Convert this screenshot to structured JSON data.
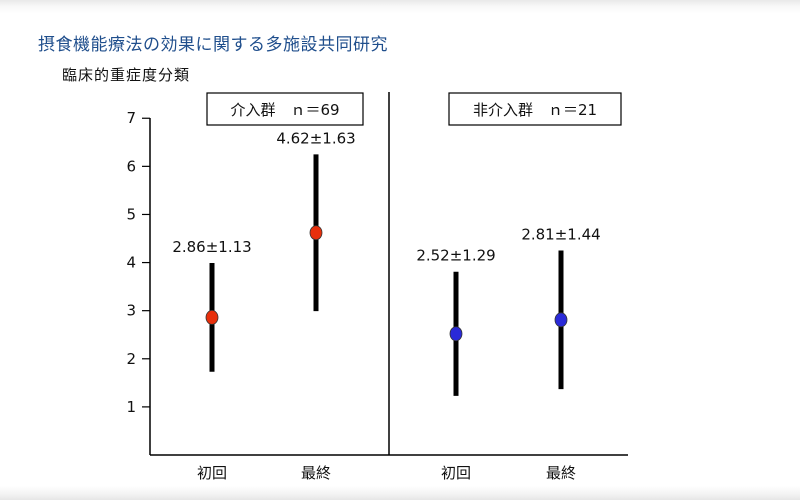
{
  "title": "摂食機能療法の効果に関する多施設共同研究",
  "subtitle": "臨床的重症度分類",
  "colors": {
    "intervention": "#e8300c",
    "control": "#2a2ad8",
    "title": "#1f4e8c"
  },
  "chart_data": {
    "type": "scatter",
    "ylabel": "臨床的重症度分類",
    "ylim": [
      0,
      7.4
    ],
    "yticks": [
      "1",
      "2",
      "3",
      "4",
      "5",
      "6",
      "7"
    ],
    "grid": false,
    "groups": [
      {
        "label": "介入群　ｎ＝69",
        "color": "#e8300c",
        "points": [
          {
            "category": "初回",
            "mean": 2.86,
            "sd": 1.13,
            "label": "2.86±1.13"
          },
          {
            "category": "最終",
            "mean": 4.62,
            "sd": 1.63,
            "label": "4.62±1.63"
          }
        ]
      },
      {
        "label": "非介入群　ｎ＝21",
        "color": "#2a2ad8",
        "points": [
          {
            "category": "初回",
            "mean": 2.52,
            "sd": 1.29,
            "label": "2.52±1.29"
          },
          {
            "category": "最終",
            "mean": 2.81,
            "sd": 1.44,
            "label": "2.81±1.44"
          }
        ]
      }
    ]
  }
}
